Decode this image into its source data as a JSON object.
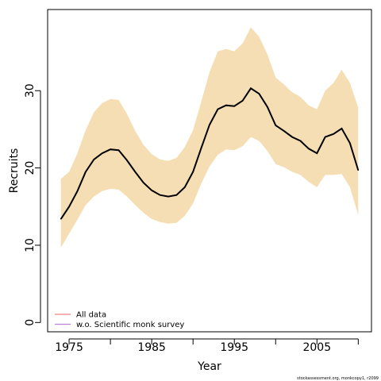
{
  "chart_data": {
    "type": "line",
    "xlabel": "Year",
    "ylabel": "Recruits",
    "xlim": [
      1972.4,
      2011.6
    ],
    "ylim": [
      -1.2,
      40.5
    ],
    "x_ticks": [
      1975,
      1985,
      1995,
      2005
    ],
    "x_minor_ticks": [
      1980,
      1990,
      2000,
      2010
    ],
    "y_ticks": [
      0,
      10,
      20,
      30
    ],
    "grid": false,
    "legend_position": "bottom-left",
    "x": [
      1974,
      1975,
      1976,
      1977,
      1978,
      1979,
      1980,
      1981,
      1982,
      1983,
      1984,
      1985,
      1986,
      1987,
      1988,
      1989,
      1990,
      1991,
      1992,
      1993,
      1994,
      1995,
      1996,
      1997,
      1998,
      1999,
      2000,
      2001,
      2002,
      2003,
      2004,
      2005,
      2006,
      2007,
      2008,
      2009,
      2010
    ],
    "series": [
      {
        "values": [
          13.4,
          15.0,
          17.0,
          19.5,
          21.1,
          21.9,
          22.4,
          22.3,
          21.0,
          19.5,
          18.1,
          17.1,
          16.5,
          16.3,
          16.5,
          17.5,
          19.5,
          22.6,
          25.6,
          27.6,
          28.1,
          28.0,
          28.7,
          30.3,
          29.6,
          27.9,
          25.5,
          24.8,
          24.0,
          23.5,
          22.5,
          21.9,
          24.0,
          24.4,
          25.1,
          23.2,
          19.7
        ],
        "lower": [
          9.7,
          11.5,
          13.3,
          15.2,
          16.3,
          17.0,
          17.3,
          17.2,
          16.3,
          15.2,
          14.2,
          13.4,
          13.0,
          12.8,
          12.9,
          13.8,
          15.4,
          18.0,
          20.2,
          21.7,
          22.4,
          22.3,
          22.8,
          24.0,
          23.5,
          22.2,
          20.5,
          20.1,
          19.5,
          19.1,
          18.2,
          17.5,
          19.1,
          19.1,
          19.2,
          17.5,
          13.9
        ],
        "upper": [
          18.6,
          19.5,
          21.9,
          24.9,
          27.2,
          28.4,
          28.9,
          28.8,
          27.0,
          24.8,
          23.0,
          21.8,
          21.1,
          20.9,
          21.3,
          22.7,
          24.9,
          28.6,
          32.4,
          35.1,
          35.4,
          35.1,
          36.1,
          38.2,
          37.0,
          34.7,
          31.7,
          30.8,
          29.8,
          29.2,
          28.1,
          27.6,
          30.0,
          31.0,
          32.7,
          31.0,
          27.8
        ],
        "color": "#000000",
        "band_color": "#f5deb3"
      }
    ],
    "legend": [
      {
        "label": "All data",
        "color": "#f08080"
      },
      {
        "label": "w.o. Scientific monk survey",
        "color": "#c080e0"
      }
    ]
  },
  "credit": "stockassessment.org, monkcopy1, r2099"
}
